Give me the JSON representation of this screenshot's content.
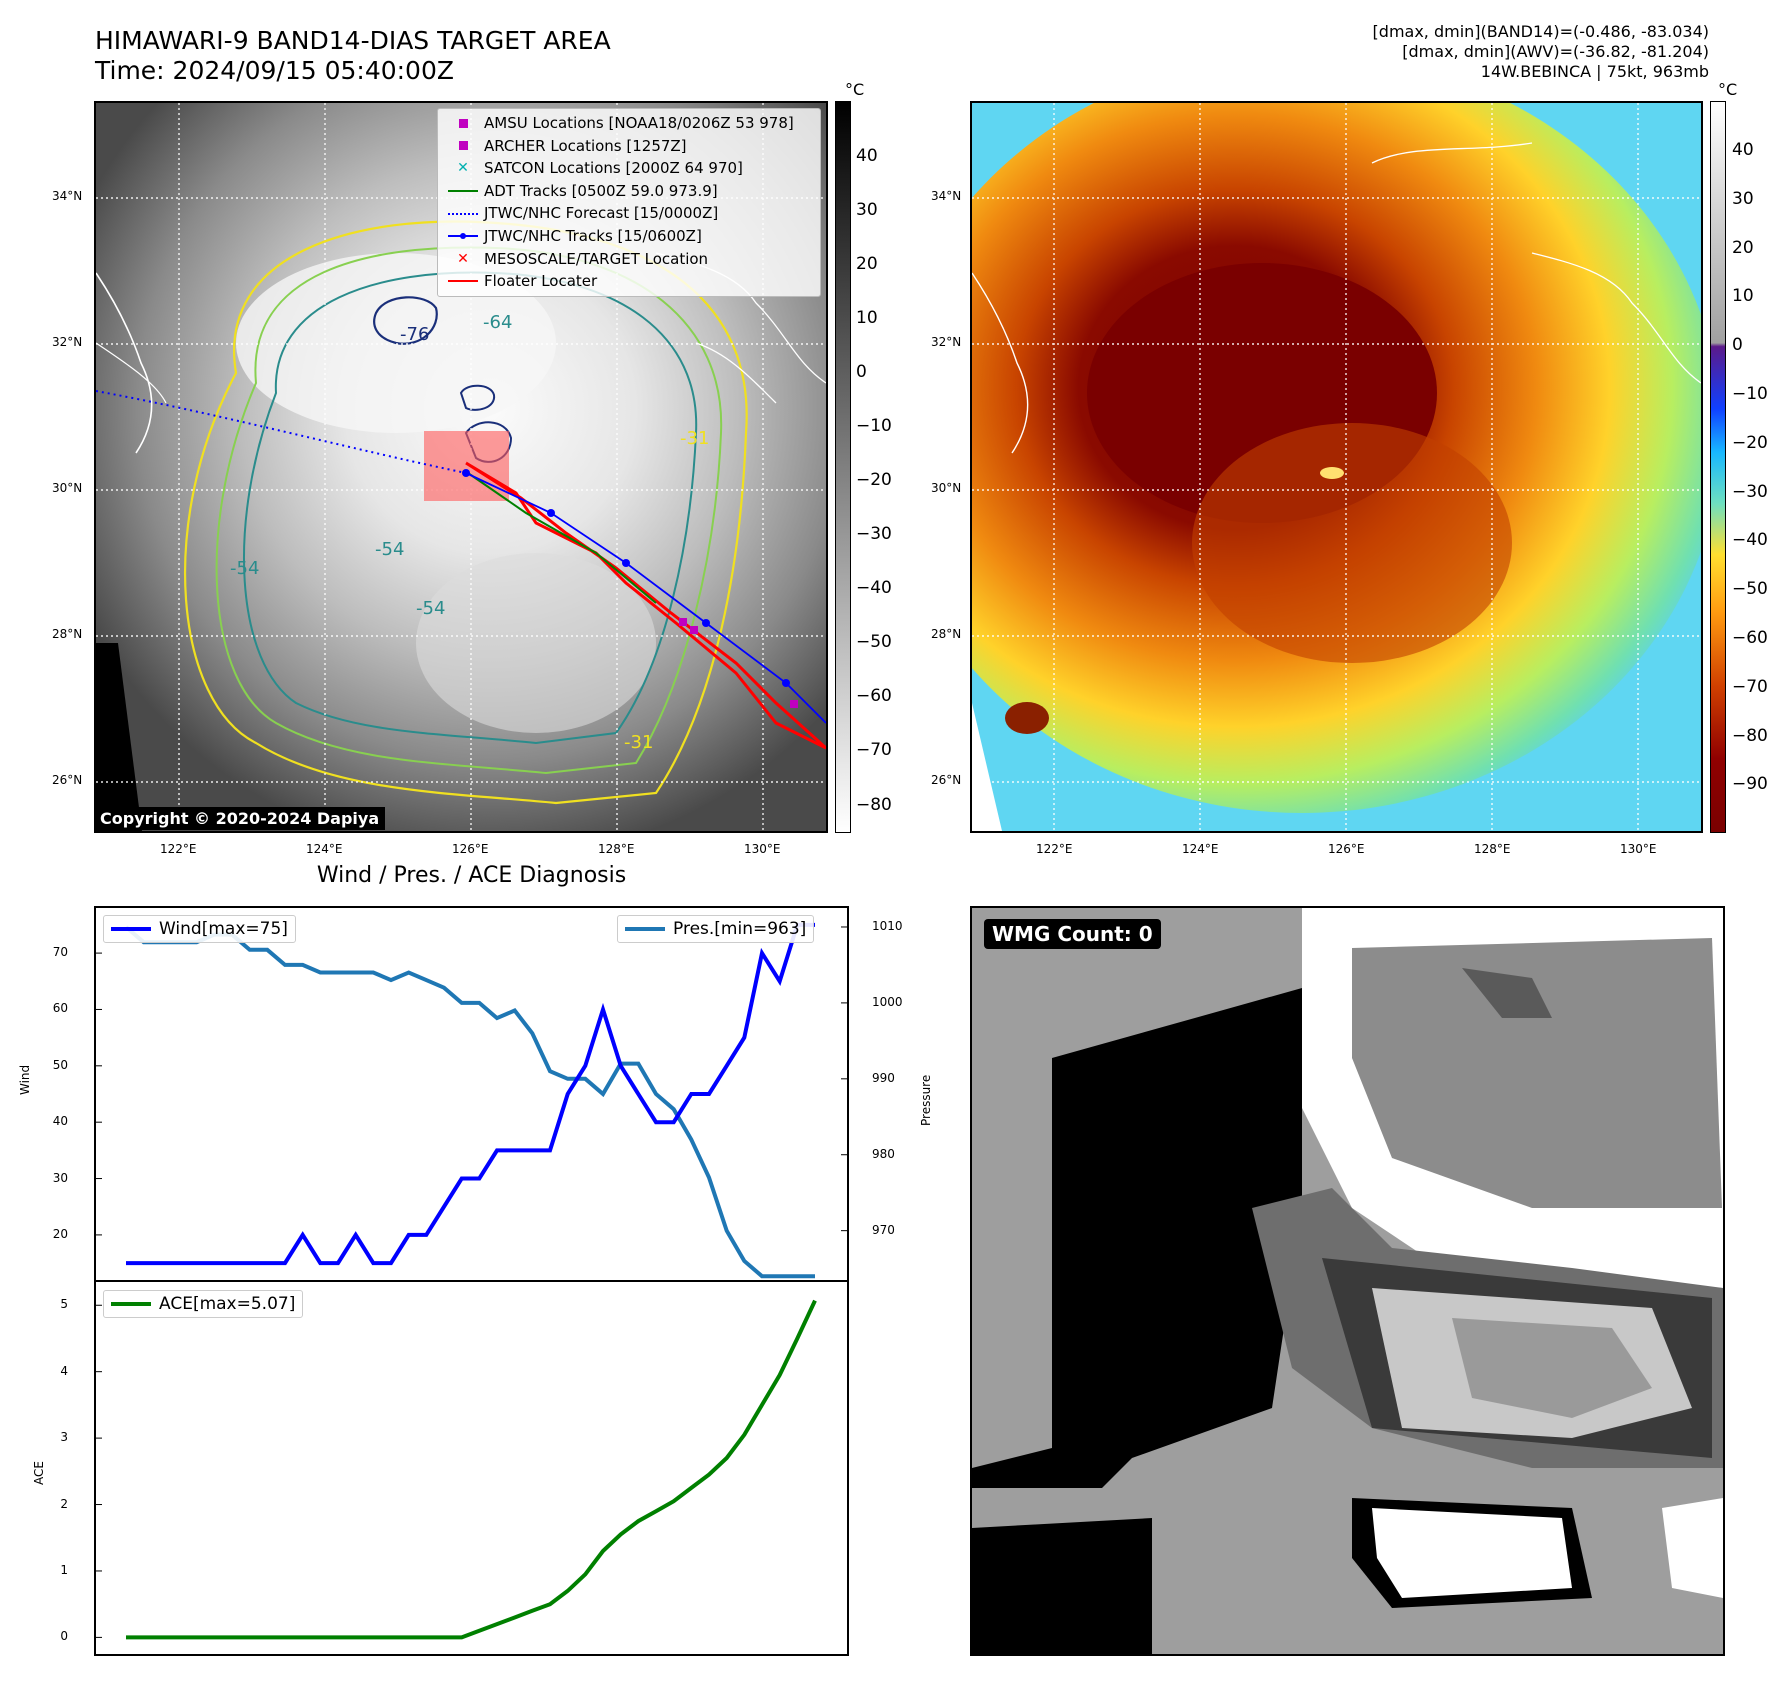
{
  "header": {
    "title_line1": "HIMAWARI-9 BAND14-DIAS TARGET AREA",
    "title_line2": "Time: 2024/09/15 05:40:00Z",
    "stats_line1": "[dmax, dmin](BAND14)=(-0.486, -83.034)",
    "stats_line2": "[dmax, dmin](AWV)=(-36.82, -81.204)",
    "stats_line3": "14W.BEBINCA | 75kt, 963mb"
  },
  "maps": {
    "lat_labels": [
      "34°N",
      "32°N",
      "30°N",
      "28°N",
      "26°N"
    ],
    "lon_labels": [
      "122°E",
      "124°E",
      "126°E",
      "128°E",
      "130°E"
    ],
    "copyright": "Copyright © 2020-2024 Dapiya",
    "contour_labels": [
      "-76",
      "-64",
      "-31",
      "-54",
      "-54",
      "-54",
      "-31"
    ],
    "colorbar_unit": "°C",
    "colorbar1_ticks": [
      "40",
      "30",
      "20",
      "10",
      "0",
      "−10",
      "−20",
      "−30",
      "−40",
      "−50",
      "−60",
      "−70",
      "−80"
    ],
    "colorbar2_ticks": [
      "40",
      "30",
      "20",
      "10",
      "0",
      "−10",
      "−20",
      "−30",
      "−40",
      "−50",
      "−60",
      "−70",
      "−80",
      "−90"
    ],
    "colors": {
      "track": "#0000ff",
      "floater": "#ff0000",
      "adt": "#008000",
      "amsu": "#c000c0",
      "satcon": "#00b0b0"
    }
  },
  "legend": {
    "items": [
      {
        "label": "AMSU Locations [NOAA18/0206Z 53 978]",
        "icon": "square-marker-icon"
      },
      {
        "label": "ARCHER Locations [1257Z]",
        "icon": "square-marker-icon"
      },
      {
        "label": "SATCON Locations [2000Z 64 970]",
        "icon": "x-marker-icon"
      },
      {
        "label": "ADT Tracks [0500Z 59.0 973.9]",
        "icon": "line-icon"
      },
      {
        "label": "JTWC/NHC Forecast [15/0000Z]",
        "icon": "dotted-line-icon"
      },
      {
        "label": "JTWC/NHC Tracks [15/0600Z]",
        "icon": "line-dot-icon"
      },
      {
        "label": "MESOSCALE/TARGET Location",
        "icon": "x-marker-icon"
      },
      {
        "label": "Floater Locater",
        "icon": "line-icon"
      }
    ]
  },
  "diagnosis": {
    "title": "Wind / Pres. / ACE Diagnosis",
    "wmg_label": "WMG Count: 0"
  },
  "chart_data": [
    {
      "type": "line",
      "title": "Wind / Pres. / ACE Diagnosis",
      "ylabel": "Wind",
      "y2label": "Pressure",
      "ylim": [
        12,
        78
      ],
      "y2lim": [
        963.5,
        1012.5
      ],
      "yticks": [
        "20",
        "30",
        "40",
        "50",
        "60",
        "70"
      ],
      "y2ticks": [
        "970",
        "980",
        "990",
        "1000",
        "1010"
      ],
      "series": [
        {
          "name": "Wind[max=75]",
          "axis": "left",
          "color": "#0000ff",
          "values": [
            15,
            15,
            15,
            15,
            15,
            15,
            15,
            15,
            15,
            15,
            20,
            15,
            15,
            20,
            15,
            15,
            20,
            20,
            25,
            30,
            30,
            35,
            35,
            35,
            35,
            45,
            50,
            60,
            50,
            45,
            40,
            40,
            45,
            45,
            50,
            55,
            70,
            65,
            75,
            75
          ]
        },
        {
          "name": "Pres.[min=963]",
          "axis": "right",
          "color": "#1f77b4",
          "values": [
            1010,
            1008,
            1008,
            1008,
            1008,
            1009,
            1009,
            1007,
            1007,
            1005,
            1005,
            1004,
            1004,
            1004,
            1004,
            1003,
            1004,
            1003,
            1002,
            1000,
            1000,
            998,
            999,
            996,
            991,
            990,
            990,
            988,
            992,
            992,
            988,
            986,
            982,
            977,
            970,
            966,
            964,
            964,
            964,
            964
          ]
        }
      ]
    },
    {
      "type": "line",
      "ylabel": "ACE",
      "ylim": [
        -0.25,
        5.35
      ],
      "yticks": [
        "0",
        "1",
        "2",
        "3",
        "4",
        "5"
      ],
      "series": [
        {
          "name": "ACE[max=5.07]",
          "color": "#008000",
          "values": [
            0,
            0,
            0,
            0,
            0,
            0,
            0,
            0,
            0,
            0,
            0,
            0,
            0,
            0,
            0,
            0,
            0,
            0,
            0,
            0,
            0.1,
            0.2,
            0.3,
            0.4,
            0.5,
            0.7,
            0.95,
            1.3,
            1.55,
            1.75,
            1.9,
            2.05,
            2.25,
            2.45,
            2.7,
            3.05,
            3.5,
            3.95,
            4.5,
            5.07
          ]
        }
      ]
    }
  ]
}
